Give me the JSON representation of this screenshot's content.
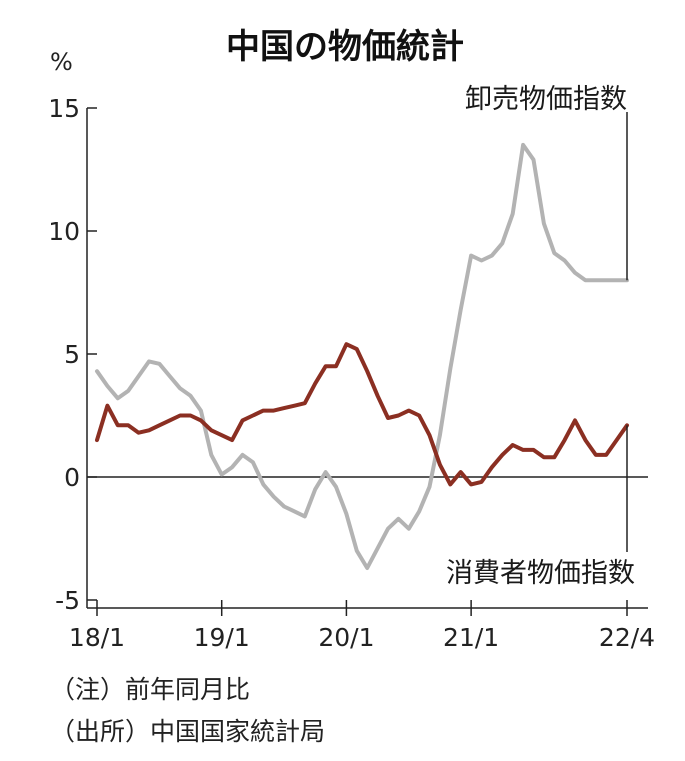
{
  "chart_data": {
    "type": "line",
    "title": "中国の物価統計",
    "ylabel": "%",
    "xlabel": "",
    "ylim": [
      -5,
      15
    ],
    "yticks": [
      -5,
      0,
      5,
      10,
      15
    ],
    "xlim": [
      0,
      51
    ],
    "xticks": [
      {
        "pos": 0,
        "label": "18/1"
      },
      {
        "pos": 12,
        "label": "19/1"
      },
      {
        "pos": 24,
        "label": "20/1"
      },
      {
        "pos": 36,
        "label": "21/1"
      },
      {
        "pos": 51,
        "label": "22/4"
      }
    ],
    "grid": false,
    "series": [
      {
        "name": "卸売物価指数",
        "color": "#b3b3b3",
        "x": [
          0,
          1,
          2,
          3,
          4,
          5,
          6,
          7,
          8,
          9,
          10,
          11,
          12,
          13,
          14,
          15,
          16,
          17,
          18,
          19,
          20,
          21,
          22,
          23,
          24,
          25,
          26,
          27,
          28,
          29,
          30,
          31,
          32,
          33,
          34,
          35,
          36,
          37,
          38,
          39,
          40,
          41,
          42,
          43,
          44,
          45,
          46,
          47,
          48,
          49,
          50,
          51
        ],
        "values": [
          4.3,
          3.7,
          3.2,
          3.5,
          4.1,
          4.7,
          4.6,
          4.1,
          3.6,
          3.3,
          2.7,
          0.9,
          0.1,
          0.4,
          0.9,
          0.6,
          -0.3,
          -0.8,
          -1.2,
          -1.4,
          -1.6,
          -0.5,
          0.2,
          -0.4,
          -1.5,
          -3.0,
          -3.7,
          -2.9,
          -2.1,
          -1.7,
          -2.1,
          -1.4,
          -0.4,
          1.7,
          4.4,
          6.8,
          9.0,
          8.8,
          9.0,
          9.5,
          10.7,
          13.5,
          12.9,
          10.3,
          9.1,
          8.8,
          8.3,
          8.0,
          8.0,
          8.0,
          8.0,
          8.0
        ]
      },
      {
        "name": "消費者物価指数",
        "color": "#8b2f22",
        "x": [
          0,
          1,
          2,
          3,
          4,
          5,
          6,
          7,
          8,
          9,
          10,
          11,
          12,
          13,
          14,
          15,
          16,
          17,
          18,
          19,
          20,
          21,
          22,
          23,
          24,
          25,
          26,
          27,
          28,
          29,
          30,
          31,
          32,
          33,
          34,
          35,
          36,
          37,
          38,
          39,
          40,
          41,
          42,
          43,
          44,
          45,
          46,
          47,
          48,
          49,
          50,
          51
        ],
        "values": [
          1.5,
          2.9,
          2.1,
          2.1,
          1.8,
          1.9,
          2.1,
          2.3,
          2.5,
          2.5,
          2.3,
          1.9,
          1.7,
          1.5,
          2.3,
          2.5,
          2.7,
          2.7,
          2.8,
          2.9,
          3.0,
          3.8,
          4.5,
          4.5,
          5.4,
          5.2,
          4.3,
          3.3,
          2.4,
          2.5,
          2.7,
          2.5,
          1.7,
          0.5,
          -0.3,
          0.2,
          -0.3,
          -0.2,
          0.4,
          0.9,
          1.3,
          1.1,
          1.1,
          0.8,
          0.8,
          1.5,
          2.3,
          1.5,
          0.9,
          0.9,
          1.5,
          2.1
        ]
      }
    ]
  },
  "notes": [
    "（注）前年同月比",
    "（出所）中国国家統計局"
  ]
}
